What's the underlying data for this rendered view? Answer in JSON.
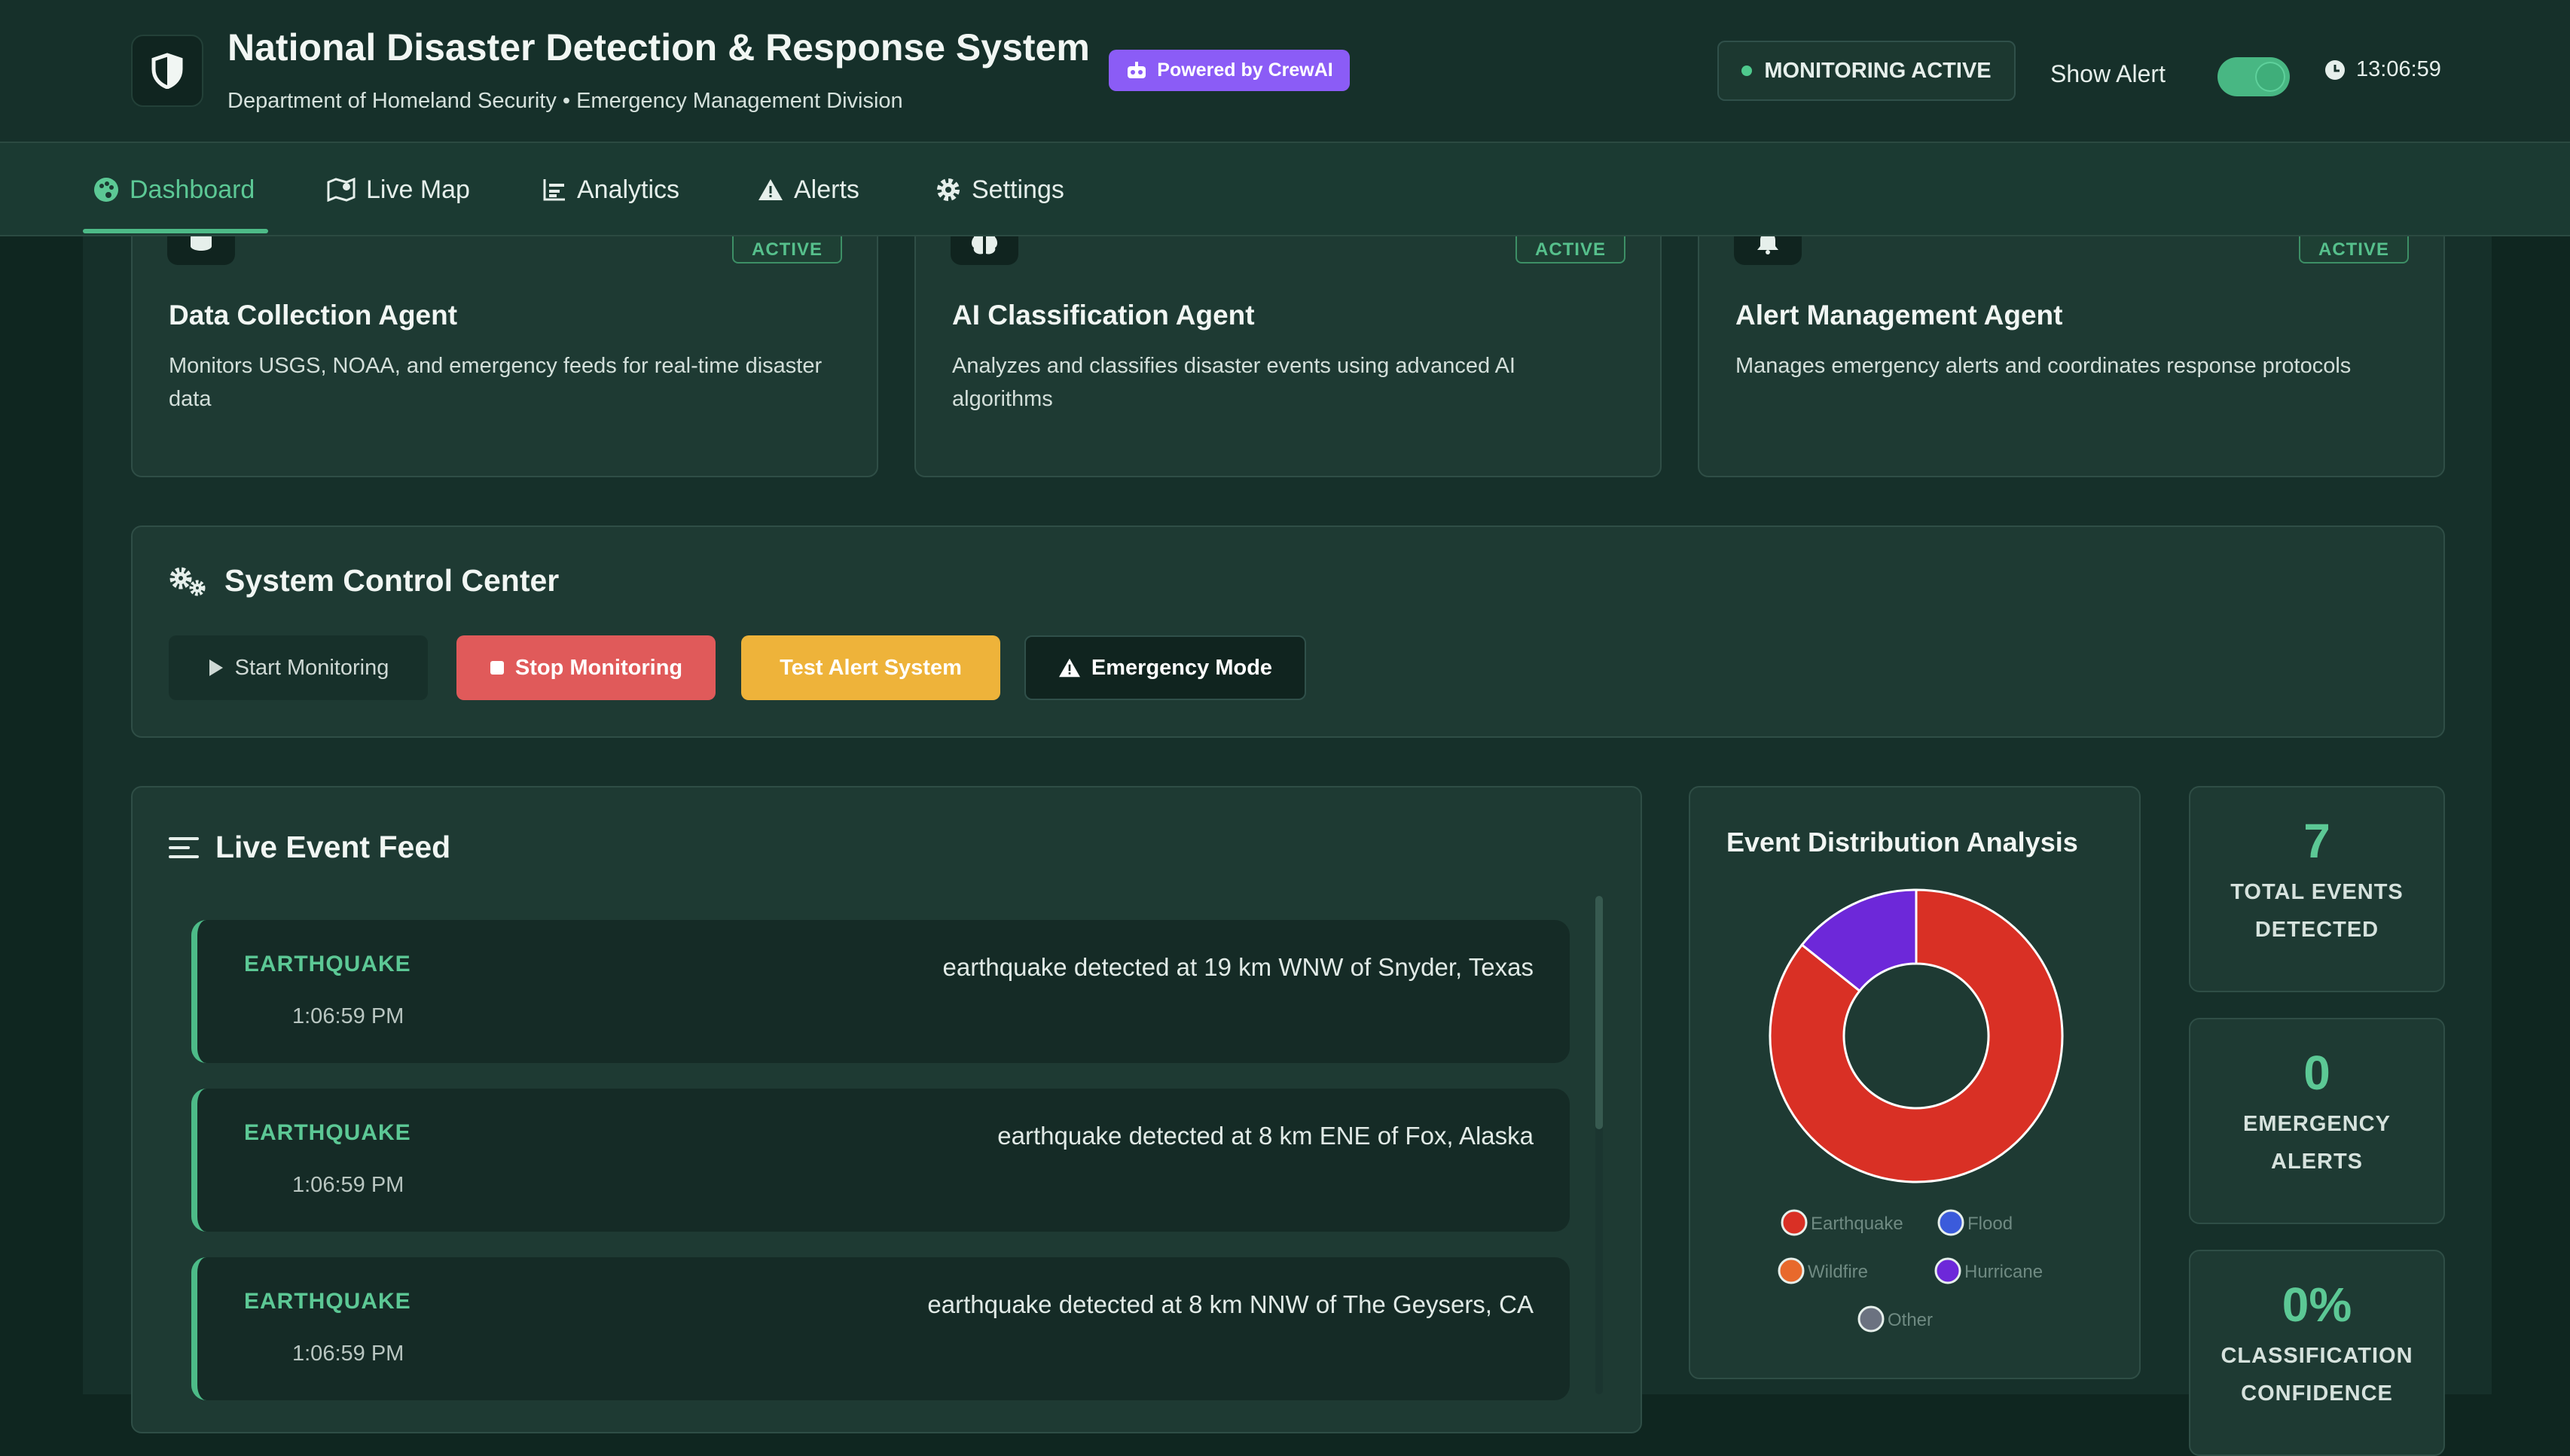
{
  "header": {
    "title": "National Disaster Detection & Response System",
    "subtitle": "Department of Homeland Security • Emergency Management Division",
    "powered_badge": "Powered by CrewAI",
    "monitoring_status": "MONITORING ACTIVE",
    "show_alert_label": "Show Alert",
    "show_alert_on": true,
    "clock": "13:06:59"
  },
  "nav": {
    "tabs": [
      {
        "label": "Dashboard",
        "icon": "palette-icon",
        "active": true
      },
      {
        "label": "Live Map",
        "icon": "map-icon",
        "active": false
      },
      {
        "label": "Analytics",
        "icon": "chart-icon",
        "active": false
      },
      {
        "label": "Alerts",
        "icon": "warning-icon",
        "active": false
      },
      {
        "label": "Settings",
        "icon": "gear-icon",
        "active": false
      }
    ]
  },
  "agents": [
    {
      "title": "Data Collection Agent",
      "status": "ACTIVE",
      "icon": "database-icon",
      "description": "Monitors USGS, NOAA, and emergency feeds for real-time disaster data"
    },
    {
      "title": "AI Classification Agent",
      "status": "ACTIVE",
      "icon": "brain-icon",
      "description": "Analyzes and classifies disaster events using advanced AI algorithms"
    },
    {
      "title": "Alert Management Agent",
      "status": "ACTIVE",
      "icon": "bell-icon",
      "description": "Manages emergency alerts and coordinates response protocols"
    }
  ],
  "control_center": {
    "title": "System Control Center",
    "buttons": {
      "start": "Start Monitoring",
      "stop": "Stop Monitoring",
      "test": "Test Alert System",
      "emergency": "Emergency Mode"
    }
  },
  "feed": {
    "title": "Live Event Feed",
    "events": [
      {
        "type": "EARTHQUAKE",
        "time": "1:06:59 PM",
        "description": "earthquake detected at 19 km WNW of Snyder, Texas"
      },
      {
        "type": "EARTHQUAKE",
        "time": "1:06:59 PM",
        "description": "earthquake detected at 8 km ENE of Fox, Alaska"
      },
      {
        "type": "EARTHQUAKE",
        "time": "1:06:59 PM",
        "description": "earthquake detected at 8 km NNW of The Geysers, CA"
      }
    ]
  },
  "distribution": {
    "title": "Event Distribution Analysis"
  },
  "chart_data": {
    "type": "pie",
    "donut": true,
    "title": "Event Distribution Analysis",
    "legend_position": "bottom",
    "categories": [
      "Earthquake",
      "Flood",
      "Wildfire",
      "Hurricane",
      "Other"
    ],
    "values": [
      6,
      0,
      0,
      1,
      0
    ],
    "colors": [
      "#d93025",
      "#3b5bdb",
      "#e8692c",
      "#6d28d9",
      "#6b7280"
    ]
  },
  "stats": [
    {
      "value": "7",
      "label_line1": "TOTAL EVENTS",
      "label_line2": "DETECTED"
    },
    {
      "value": "0",
      "label_line1": "EMERGENCY",
      "label_line2": "ALERTS"
    },
    {
      "value": "0%",
      "label_line1": "CLASSIFICATION",
      "label_line2": "CONFIDENCE"
    }
  ]
}
